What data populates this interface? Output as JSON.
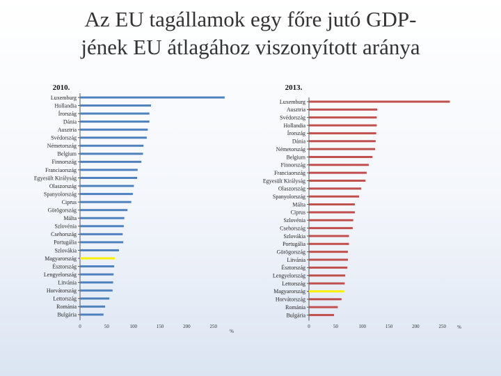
{
  "title": {
    "line1": "Az EU tagállamok egy főre jutó GDP-",
    "line2": "jének   EU átlagához viszonyított aránya"
  },
  "colors": {
    "bar2010": "#4f81bd",
    "bar2013": "#c0504d",
    "highlight": "#f7f000",
    "axis": "#555555"
  },
  "chart_data": [
    {
      "type": "bar",
      "orientation": "horizontal",
      "title": "2010.",
      "unit": "%",
      "xlim": [
        0,
        260
      ],
      "ticks": [
        0,
        50,
        100,
        150,
        200,
        250
      ],
      "tick_labels": [
        "0",
        "50",
        "100",
        "150",
        "200",
        "250"
      ],
      "highlight": "Magyarország",
      "categories": [
        "Luxemburg",
        "Hollandia",
        "Írország",
        "Dánia",
        "Ausztria",
        "Svédország",
        "Németország",
        "Belgium",
        "Finnország",
        "Franciaország",
        "Egyesült Királyság",
        "Olaszország",
        "Spanyolország",
        "Ciprus",
        "Görögország",
        "Málta",
        "Szlovénia",
        "Csehország",
        "Portugália",
        "Szlovákia",
        "Magyarország",
        "Észtország",
        "Lengyelország",
        "Litvánia",
        "Horvátország",
        "Lettország",
        "Románia",
        "Bulgária"
      ],
      "values": [
        271,
        133,
        130,
        130,
        127,
        125,
        119,
        118,
        115,
        108,
        107,
        101,
        99,
        96,
        89,
        83,
        82,
        80,
        81,
        73,
        65,
        64,
        63,
        62,
        61,
        55,
        47,
        44
      ]
    },
    {
      "type": "bar",
      "orientation": "horizontal",
      "title": "2013.",
      "unit": "%",
      "xlim": [
        0,
        260
      ],
      "ticks": [
        0,
        50,
        100,
        150,
        200,
        250
      ],
      "tick_labels": [
        "0",
        "50",
        "100",
        "150",
        "200",
        "250"
      ],
      "highlight": "Magyarország",
      "categories": [
        "Luxemburg",
        "Ausztria",
        "Svédország",
        "Hollandia",
        "Írország",
        "Dánia",
        "Németország",
        "Belgium",
        "Finnország",
        "Franciaország",
        "Egyesült Királyság",
        "Olaszország",
        "Spanyolország",
        "Málta",
        "Ciprus",
        "Szlovénia",
        "Csehország",
        "Szlovákia",
        "Portugália",
        "Görögország",
        "Litvánia",
        "Észtország",
        "Lengyelország",
        "Lettország",
        "Magyarország",
        "Horvátország",
        "Románia",
        "Bulgária"
      ],
      "values": [
        264,
        128,
        127,
        127,
        126,
        125,
        124,
        119,
        112,
        108,
        106,
        98,
        94,
        86,
        86,
        83,
        82,
        75,
        75,
        73,
        73,
        72,
        68,
        67,
        66,
        61,
        54,
        47
      ]
    }
  ]
}
